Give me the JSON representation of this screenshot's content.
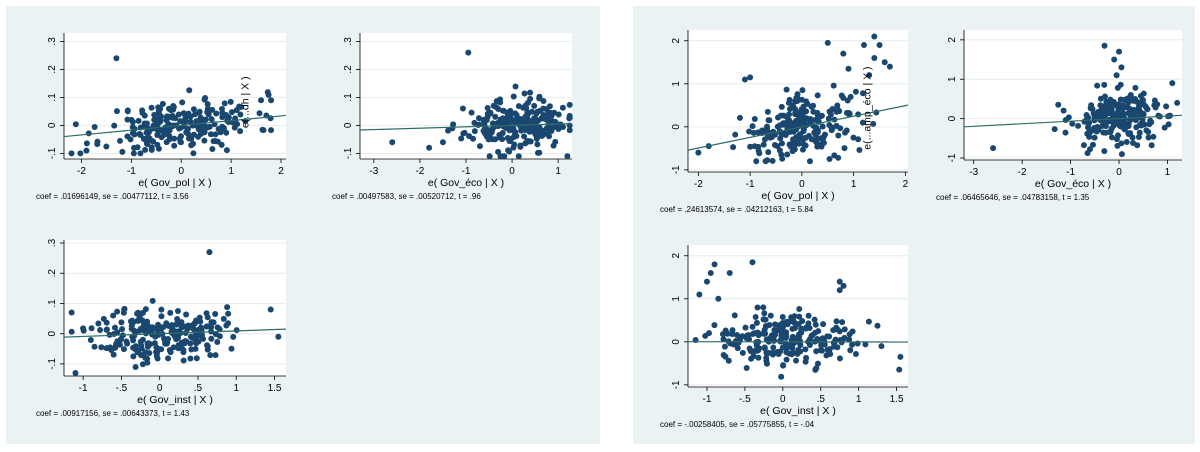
{
  "colors": {
    "panel": "#eaf2f3",
    "plot_area": "#ffffff",
    "marker": "#1a476f",
    "fit_line": "#2d6d66",
    "grid": "#e6ecec"
  },
  "chart_data": [
    {
      "type": "scatter",
      "xlabel": "e( Gov_pol | X )",
      "ylabel": "",
      "xlim": [
        -2.35,
        2.1
      ],
      "ylim": [
        -0.12,
        0.33
      ],
      "xticks": [
        -2,
        -1,
        0,
        1,
        2
      ],
      "xtick_labels": [
        "-2",
        "-1",
        "0",
        "1",
        "2"
      ],
      "yticks": [
        -0.1,
        0,
        0.1,
        0.2,
        0.3
      ],
      "ytick_labels": [
        "-.1",
        "0",
        ".1",
        ".2",
        ".3"
      ],
      "fit": {
        "slope": 0.01696149,
        "intercept": 0.0
      },
      "stat_text": "coef = .01696149, se = .00477112, t = 3.56",
      "cloud": {
        "x_center": 0.0,
        "x_spread": 0.75,
        "y_spread": 0.045,
        "n": 230,
        "seed": 11,
        "xmin": -2.25,
        "xmax": 1.8,
        "ymin": -0.1,
        "ymax": 0.13
      },
      "outliers": [
        [
          -1.3,
          0.24
        ],
        [
          -2.2,
          -0.1
        ],
        [
          -1.9,
          -0.09
        ],
        [
          1.6,
          0.09
        ],
        [
          1.8,
          0.09
        ]
      ],
      "overlay_text": "e(...dh | X )"
    },
    {
      "type": "scatter",
      "xlabel": "e( Gov_éco | X )",
      "ylabel": "",
      "xlim": [
        -3.3,
        1.3
      ],
      "ylim": [
        -0.12,
        0.33
      ],
      "xticks": [
        -3,
        -2,
        -1,
        0,
        1
      ],
      "xtick_labels": [
        "-3",
        "-2",
        "-1",
        "0",
        "1"
      ],
      "yticks": [
        -0.1,
        0,
        0.1,
        0.2,
        0.3
      ],
      "ytick_labels": [
        "-.1",
        "0",
        ".1",
        ".2",
        ".3"
      ],
      "fit": {
        "slope": 0.00497583,
        "intercept": 0.0
      },
      "stat_text": "coef = .00497583, se = .00520712, t = .96",
      "cloud": {
        "x_center": 0.1,
        "x_spread": 0.55,
        "y_spread": 0.045,
        "n": 230,
        "seed": 23,
        "xmin": -1.5,
        "xmax": 1.25,
        "ymin": -0.11,
        "ymax": 0.14
      },
      "outliers": [
        [
          -0.95,
          0.26
        ],
        [
          -2.6,
          -0.06
        ],
        [
          -1.8,
          -0.08
        ],
        [
          -1.5,
          -0.06
        ],
        [
          1.2,
          -0.11
        ]
      ],
      "overlay_text": ""
    },
    {
      "type": "scatter",
      "xlabel": "e( Gov_inst | X )",
      "ylabel": "",
      "xlim": [
        -1.25,
        1.65
      ],
      "ylim": [
        -0.14,
        0.31
      ],
      "xticks": [
        -1,
        -0.5,
        0,
        0.5,
        1,
        1.5
      ],
      "xtick_labels": [
        "-1",
        "-.5",
        "0",
        ".5",
        "1",
        "1.5"
      ],
      "yticks": [
        -0.1,
        0,
        0.1,
        0.2,
        0.3
      ],
      "ytick_labels": [
        "-.1",
        "0",
        ".1",
        ".2",
        ".3"
      ],
      "fit": {
        "slope": 0.00917156,
        "intercept": 0.0
      },
      "stat_text": "coef = .00917156, se = .00643373, t = 1.43",
      "cloud": {
        "x_center": 0.0,
        "x_spread": 0.42,
        "y_spread": 0.045,
        "n": 230,
        "seed": 37,
        "xmin": -1.15,
        "xmax": 1.2,
        "ymin": -0.12,
        "ymax": 0.14
      },
      "outliers": [
        [
          0.65,
          0.27
        ],
        [
          -1.1,
          -0.13
        ],
        [
          1.45,
          0.08
        ],
        [
          1.55,
          -0.01
        ],
        [
          -1.15,
          0.07
        ]
      ],
      "overlay_text": ""
    },
    {
      "type": "scatter",
      "xlabel": "e( Gov_pol | X )",
      "ylabel": "",
      "xlim": [
        -2.2,
        2.05
      ],
      "ylim": [
        -1.05,
        2.25
      ],
      "xticks": [
        -2,
        -1,
        0,
        1,
        2
      ],
      "xtick_labels": [
        "-2",
        "-1",
        "0",
        "1",
        "2"
      ],
      "yticks": [
        -1,
        0,
        1,
        2
      ],
      "ytick_labels": [
        "-1",
        "0",
        "1",
        "2"
      ],
      "fit": {
        "slope": 0.24613574,
        "intercept": 0.0
      },
      "stat_text": "coef = .24613574, se = .04212163, t = 5.84",
      "cloud": {
        "x_center": 0.0,
        "x_spread": 0.55,
        "y_spread": 0.35,
        "n": 230,
        "seed": 41,
        "xmin": -2.1,
        "xmax": 1.7,
        "ymin": -0.8,
        "ymax": 1.0
      },
      "outliers": [
        [
          1.4,
          2.1
        ],
        [
          1.5,
          1.9
        ],
        [
          1.2,
          1.9
        ],
        [
          0.5,
          1.95
        ],
        [
          1.4,
          1.6
        ],
        [
          1.6,
          1.5
        ],
        [
          1.7,
          1.4
        ],
        [
          1.3,
          1.2
        ],
        [
          -1.0,
          1.15
        ],
        [
          -1.1,
          1.1
        ],
        [
          0.8,
          1.7
        ],
        [
          0.9,
          1.35
        ],
        [
          -2.0,
          -0.6
        ],
        [
          -1.8,
          -0.45
        ]
      ],
      "overlay_text": "e(...amp_éco | X )"
    },
    {
      "type": "scatter",
      "xlabel": "e( Gov_éco | X )",
      "ylabel": "",
      "xlim": [
        -3.2,
        1.3
      ],
      "ylim": [
        -1.05,
        2.25
      ],
      "xticks": [
        -3,
        -2,
        -1,
        0,
        1
      ],
      "xtick_labels": [
        "-3",
        "-2",
        "-1",
        "0",
        "1"
      ],
      "yticks": [
        -1,
        0,
        1,
        2
      ],
      "ytick_labels": [
        "-1",
        "0",
        "1",
        "2"
      ],
      "fit": {
        "slope": 0.06465646,
        "intercept": 0.0
      },
      "stat_text": "coef = .06465646, se = .04783158, t = 1.35",
      "cloud": {
        "x_center": 0.0,
        "x_spread": 0.5,
        "y_spread": 0.35,
        "n": 230,
        "seed": 53,
        "xmin": -1.6,
        "xmax": 1.2,
        "ymin": -0.9,
        "ymax": 1.2
      },
      "outliers": [
        [
          -2.6,
          -0.75
        ],
        [
          -0.3,
          1.85
        ],
        [
          0.0,
          1.7
        ],
        [
          -0.1,
          1.5
        ],
        [
          0.05,
          1.3
        ],
        [
          -0.05,
          1.1
        ],
        [
          1.1,
          0.9
        ]
      ],
      "overlay_text": ""
    },
    {
      "type": "scatter",
      "xlabel": "e( Gov_inst | X )",
      "ylabel": "",
      "xlim": [
        -1.25,
        1.65
      ],
      "ylim": [
        -1.05,
        2.25
      ],
      "xticks": [
        -1,
        -0.5,
        0,
        0.5,
        1,
        1.5
      ],
      "xtick_labels": [
        "-1",
        "-.5",
        "0",
        ".5",
        "1",
        "1.5"
      ],
      "yticks": [
        -1,
        0,
        1,
        2
      ],
      "ytick_labels": [
        "-1",
        "0",
        "1",
        "2"
      ],
      "fit": {
        "slope": -0.00258405,
        "intercept": 0.0
      },
      "stat_text": "coef = -.00258405, se = .05775855, t = -.04",
      "cloud": {
        "x_center": 0.0,
        "x_spread": 0.45,
        "y_spread": 0.3,
        "n": 230,
        "seed": 67,
        "xmin": -1.15,
        "xmax": 1.55,
        "ymin": -0.9,
        "ymax": 0.9
      },
      "outliers": [
        [
          -0.9,
          1.8
        ],
        [
          -0.95,
          1.6
        ],
        [
          -1.0,
          1.4
        ],
        [
          -1.1,
          1.1
        ],
        [
          -0.85,
          1.0
        ],
        [
          -0.7,
          1.6
        ],
        [
          -0.4,
          1.85
        ],
        [
          0.75,
          1.4
        ],
        [
          0.8,
          1.3
        ],
        [
          0.75,
          1.2
        ],
        [
          1.55,
          -0.35
        ],
        [
          1.3,
          -0.1
        ]
      ],
      "overlay_text": ""
    }
  ]
}
